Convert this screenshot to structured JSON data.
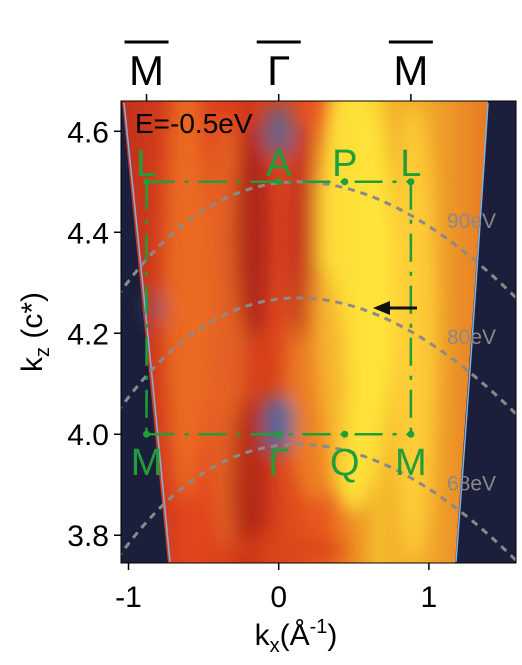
{
  "chart_data": {
    "type": "heatmap",
    "title": "",
    "xlabel_main": "k",
    "xlabel_sub": "x",
    "xlabel_unit_open": "(Å",
    "xlabel_unit_exp": "-1",
    "xlabel_unit_close": ")",
    "ylabel_main": "k",
    "ylabel_sub": "z",
    "ylabel_unit": " (c*)",
    "energy_annotation": "E=-0.5eV",
    "xlim": [
      -1.05,
      1.58
    ],
    "ylim": [
      3.745,
      4.66
    ],
    "xticks": [
      {
        "value": -1,
        "label": "-1"
      },
      {
        "value": 0,
        "label": "0"
      },
      {
        "value": 1,
        "label": "1"
      }
    ],
    "yticks": [
      {
        "value": 3.8,
        "label": "3.8"
      },
      {
        "value": 4.0,
        "label": "4.0"
      },
      {
        "value": 4.2,
        "label": "4.2"
      },
      {
        "value": 4.4,
        "label": "4.4"
      },
      {
        "value": 4.6,
        "label": "4.6"
      }
    ],
    "top_labels": [
      {
        "x": -0.88,
        "label": "M"
      },
      {
        "x": 0,
        "label": "Γ"
      },
      {
        "x": 0.88,
        "label": "M"
      }
    ],
    "bz_points": [
      {
        "name": "L",
        "x": -0.88,
        "y": 4.5
      },
      {
        "name": "A",
        "x": 0,
        "y": 4.5
      },
      {
        "name": "P",
        "x": 0.44,
        "y": 4.5
      },
      {
        "name": "L",
        "x": 0.88,
        "y": 4.5
      },
      {
        "name": "M",
        "x": -0.88,
        "y": 4.0
      },
      {
        "name": "Γ",
        "x": 0,
        "y": 4.0
      },
      {
        "name": "Q",
        "x": 0.44,
        "y": 4.0
      },
      {
        "name": "M",
        "x": 0.88,
        "y": 4.0
      }
    ],
    "photon_energy_arcs": [
      {
        "label": "90eV",
        "apex_kz": 4.5
      },
      {
        "label": "80eV",
        "apex_kz": 4.27
      },
      {
        "label": "68eV",
        "apex_kz": 3.98
      }
    ],
    "arrow_kz": 4.25,
    "colors": {
      "background": "#1b1f3b",
      "bz_lines": "#1f9e3a",
      "arcs": "#8a8a8a",
      "edge": "#7fb3e6"
    }
  }
}
